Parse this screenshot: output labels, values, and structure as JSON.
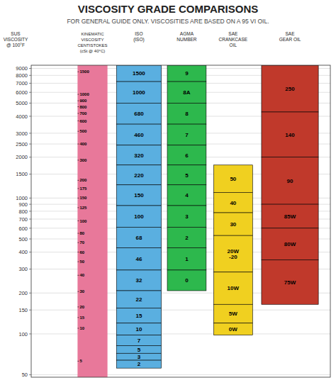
{
  "chart_data": {
    "type": "range_bar",
    "title": "VISCOSITY GRADE COMPARISONS",
    "subtitle": "FOR GENERAL GUIDE ONLY.  VISCOSITIES ARE BASED ON A 95 VI OIL.",
    "y_label": "SUS\nVISCOSITY\n@ 100°F",
    "log": "y",
    "grid": true,
    "ylim": [
      48,
      9500
    ],
    "yticks": [
      9000,
      8000,
      7000,
      6000,
      5000,
      4000,
      3000,
      2500,
      2000,
      1500,
      1000,
      900,
      800,
      700,
      600,
      500,
      400,
      300,
      200,
      150,
      100,
      50
    ],
    "scale": {
      "name": "KINEMATIC\nVISCOSITY\nCENTISTOKES\n(cSt @ 40°C)",
      "color": "#e8789a",
      "labels": [
        "1500",
        "1000",
        "900",
        "800",
        "700",
        "600",
        "500",
        "400",
        "300",
        "200",
        "175",
        "150",
        "125",
        "100",
        "80",
        "70",
        "60",
        "50",
        "40",
        "30",
        "20",
        "15",
        "10",
        "5"
      ],
      "values": [
        8500,
        5800,
        5200,
        4700,
        4200,
        3700,
        3100,
        2500,
        1900,
        1350,
        1175,
        1000,
        850,
        680,
        550,
        470,
        400,
        340,
        270,
        205,
        158,
        132,
        110,
        63
      ]
    },
    "categories": [
      "ISO\n(ISO)",
      "AGMA\nNUMBER",
      "SAE\nCRANKCASE\nOIL",
      "SAE\nGEAR OIL"
    ],
    "series": [
      {
        "name": "ISO\n(ISO)",
        "color": "#5aafe0",
        "labels": [
          "1500",
          "1000",
          "680",
          "460",
          "320",
          "220",
          "150",
          "100",
          "68",
          "46",
          "32",
          "22",
          "15",
          "10",
          "7",
          "5",
          "3",
          "2"
        ],
        "low": [
          7200,
          5000,
          3500,
          2450,
          1750,
          1250,
          880,
          610,
          430,
          295,
          208,
          155,
          120,
          98,
          82,
          72,
          64,
          56
        ],
        "high": [
          9500,
          7200,
          5000,
          3500,
          2450,
          1750,
          1250,
          880,
          610,
          430,
          295,
          208,
          155,
          120,
          98,
          82,
          72,
          64
        ]
      },
      {
        "name": "AGMA\nNUMBER",
        "color": "#2db84d",
        "labels": [
          "9",
          "8A",
          "8",
          "7",
          "6",
          "5",
          "4",
          "3",
          "2",
          "1",
          "0"
        ],
        "low": [
          7200,
          5000,
          3500,
          2450,
          1750,
          1250,
          880,
          610,
          430,
          295,
          208
        ],
        "high": [
          9500,
          7200,
          5000,
          3500,
          2450,
          1750,
          1250,
          880,
          610,
          430,
          295
        ]
      },
      {
        "name": "SAE\nCRANKCASE\nOIL",
        "color": "#f0d020",
        "labels": [
          "50",
          "40",
          "30",
          "20W\n-20",
          "10W",
          "5W",
          "0W"
        ],
        "low": [
          1100,
          780,
          530,
          285,
          165,
          120,
          98
        ],
        "high": [
          1750,
          1100,
          780,
          530,
          285,
          165,
          120
        ]
      },
      {
        "name": "SAE\nGEAR OIL",
        "color": "#c0392b",
        "labels": [
          "250",
          "140",
          "90",
          "85W",
          "80W",
          "75W"
        ],
        "low": [
          4300,
          2000,
          900,
          600,
          350,
          165
        ],
        "high": [
          9500,
          4300,
          2000,
          900,
          600,
          350
        ]
      }
    ]
  }
}
